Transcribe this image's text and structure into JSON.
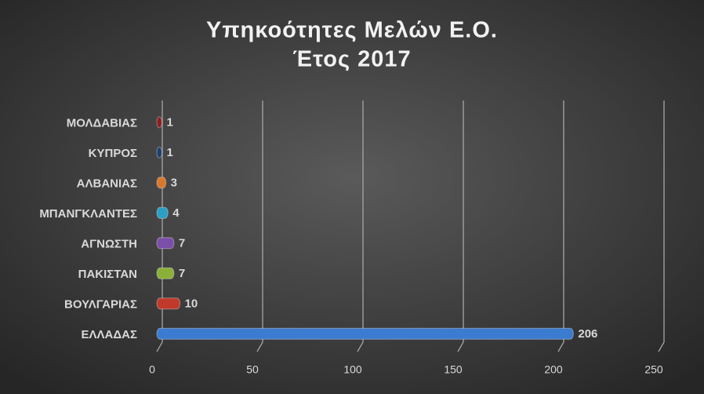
{
  "chart_data": {
    "type": "bar",
    "orientation": "horizontal",
    "title": "Υπηκοότητες Μελών Ε.Ο.",
    "subtitle": "Έτος 2017",
    "categories": [
      "ΜΟΛΔΑΒΙΑΣ",
      "ΚΥΠΡΟΣ",
      "ΑΛΒΑΝΙΑΣ",
      "ΜΠΑΝΓΚΛΑΝΤΕΣ",
      "ΑΓΝΩΣΤΗ",
      "ΠΑΚΙΣΤΑΝ",
      "ΒΟΥΛΓΑΡΙΑΣ",
      "ΕΛΛΑΔΑΣ"
    ],
    "values": [
      1,
      1,
      3,
      4,
      7,
      7,
      10,
      206
    ],
    "colors": [
      "#8b1e1e",
      "#1f3f6e",
      "#d9782a",
      "#2b9fc4",
      "#7a4fa8",
      "#8ab03a",
      "#c0392b",
      "#3b7bd0"
    ],
    "xlim": [
      0,
      250
    ],
    "xticks": [
      0,
      50,
      100,
      150,
      200,
      250
    ],
    "grid": true
  }
}
